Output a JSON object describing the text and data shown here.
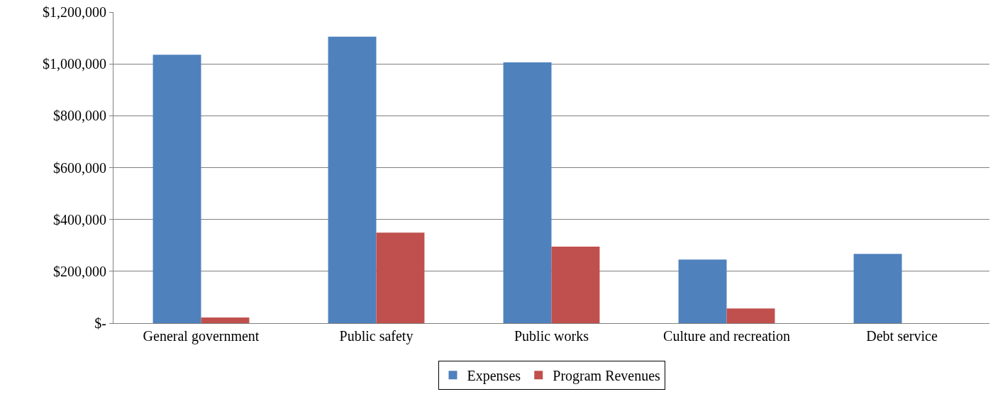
{
  "chart_data": {
    "type": "bar",
    "categories": [
      "General government",
      "Public safety",
      "Public works",
      "Culture and recreation",
      "Debt service"
    ],
    "series": [
      {
        "name": "Expenses",
        "color": "#4f81bd",
        "values": [
          1035000,
          1105000,
          1006000,
          245000,
          267000
        ]
      },
      {
        "name": "Program Revenues",
        "color": "#c0504d",
        "values": [
          22000,
          349000,
          295000,
          57000,
          0
        ]
      }
    ],
    "ylim": [
      0,
      1200000
    ],
    "yticks": [
      {
        "value": 0,
        "label": "$-"
      },
      {
        "value": 200000,
        "label": "$200,000"
      },
      {
        "value": 400000,
        "label": "$400,000"
      },
      {
        "value": 600000,
        "label": "$600,000"
      },
      {
        "value": 800000,
        "label": "$800,000"
      },
      {
        "value": 1000000,
        "label": "$1,000,000"
      },
      {
        "value": 1200000,
        "label": "$1,200,000"
      }
    ],
    "grid": "y",
    "legend": "bottom"
  }
}
